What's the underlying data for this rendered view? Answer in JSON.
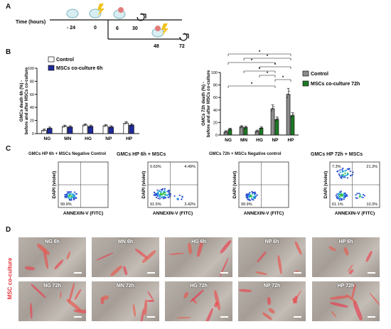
{
  "panels": {
    "a": "A",
    "b": "B",
    "c": "C",
    "d": "D"
  },
  "timeline": {
    "axis_label": "Time (hours)",
    "ticks": [
      "- 24",
      "0",
      "6",
      "30",
      "48",
      "72"
    ]
  },
  "chart_data": [
    {
      "type": "bar",
      "ylabel": "GMCs death 6h (%) - before and after MSCs co-culture",
      "categories": [
        "NG",
        "MN",
        "HG",
        "NP",
        "HP"
      ],
      "ylim": [
        0,
        100
      ],
      "yticks": [
        "0",
        "20",
        "40",
        "60",
        "80",
        "100"
      ],
      "grid": false,
      "legend_position": "top-left",
      "series": [
        {
          "name": "Control",
          "color": "#ffffff",
          "values": [
            5,
            11,
            13,
            12,
            16
          ]
        },
        {
          "name": "MSCs co-culture 6h",
          "color": "#1f2a9a",
          "values": [
            8,
            10,
            11,
            10,
            13
          ]
        }
      ]
    },
    {
      "type": "bar",
      "ylabel": "GMCs 72h death (%) - before and after MSCs co-culture",
      "categories": [
        "NG",
        "MN",
        "HG",
        "NP",
        "HP"
      ],
      "ylim": [
        0,
        100
      ],
      "yticks": [
        "0",
        "20",
        "40",
        "60",
        "80",
        "100"
      ],
      "grid": false,
      "legend_position": "right",
      "significance_marker": "*",
      "series": [
        {
          "name": "Control",
          "color": "#8c8c8c",
          "values": [
            5,
            13,
            6,
            42,
            65
          ]
        },
        {
          "name": "MSCs co-culture 72h",
          "color": "#1d7a24",
          "values": [
            9,
            12,
            11,
            25,
            31
          ]
        }
      ]
    }
  ],
  "flow": [
    {
      "title": "GMCs HP 6h + MSCs Negative Control",
      "q_ul": "",
      "q_ur": "",
      "q_ll": "99.9%",
      "q_lr": ""
    },
    {
      "title": "GMCs HP 6h + MSCs",
      "q_ul": "0.63%",
      "q_ur": "4.49%",
      "q_ll": "91.5%",
      "q_lr": "3.42%"
    },
    {
      "title": "GMCs 72h + MSCs Negative control",
      "q_ul": "",
      "q_ur": "",
      "q_ll": "99.9%",
      "q_lr": ""
    },
    {
      "title": "GMCs HP 72h + MSCs",
      "q_ul": "7.3%",
      "q_ur": "21.3%",
      "q_ll": "61.1%",
      "q_lr": "10.3%"
    }
  ],
  "flow_axes": {
    "x": "ANNEXIN-V (FITC)",
    "y": "DAPI (violet)"
  },
  "micro": {
    "side_label": "MSC co-culture",
    "row1": [
      "NG 6h",
      "MN 6h",
      "HG 6h",
      "NP 6h",
      "HP 6h"
    ],
    "row2": [
      "NG 72h",
      "MN 72h",
      "HG 72h",
      "NP 72h",
      "HP 72h"
    ]
  }
}
